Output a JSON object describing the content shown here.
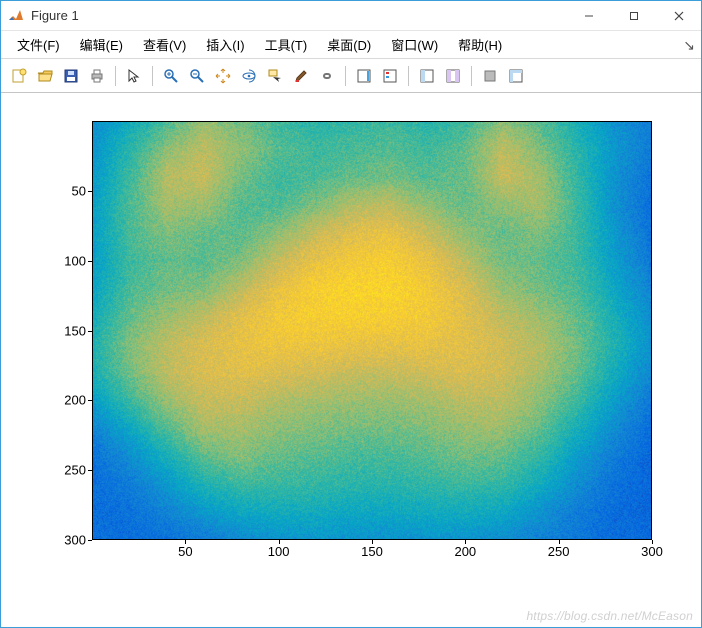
{
  "window": {
    "title": "Figure 1",
    "controls": {
      "minimize": "—",
      "maximize": "☐",
      "close": "✕"
    }
  },
  "menubar": {
    "items": [
      {
        "label": "文件(F)"
      },
      {
        "label": "编辑(E)"
      },
      {
        "label": "查看(V)"
      },
      {
        "label": "插入(I)"
      },
      {
        "label": "工具(T)"
      },
      {
        "label": "桌面(D)"
      },
      {
        "label": "窗口(W)"
      },
      {
        "label": "帮助(H)"
      }
    ],
    "aux_glyph": "↘"
  },
  "toolbar": {
    "items": [
      {
        "name": "new-figure-icon",
        "kind": "icon"
      },
      {
        "name": "open-icon",
        "kind": "icon"
      },
      {
        "name": "save-icon",
        "kind": "icon"
      },
      {
        "name": "print-icon",
        "kind": "icon"
      },
      {
        "name": "sep"
      },
      {
        "name": "pointer-icon",
        "kind": "icon"
      },
      {
        "name": "sep"
      },
      {
        "name": "zoom-in-icon",
        "kind": "icon"
      },
      {
        "name": "zoom-out-icon",
        "kind": "icon"
      },
      {
        "name": "pan-icon",
        "kind": "icon"
      },
      {
        "name": "rotate3d-icon",
        "kind": "icon"
      },
      {
        "name": "data-cursor-icon",
        "kind": "icon"
      },
      {
        "name": "brush-icon",
        "kind": "icon"
      },
      {
        "name": "link-icon",
        "kind": "icon"
      },
      {
        "name": "sep"
      },
      {
        "name": "colorbar-icon",
        "kind": "icon"
      },
      {
        "name": "legend-icon",
        "kind": "icon"
      },
      {
        "name": "sep"
      },
      {
        "name": "layout1-icon",
        "kind": "icon"
      },
      {
        "name": "layout2-icon",
        "kind": "icon"
      },
      {
        "name": "sep"
      },
      {
        "name": "hide-plot-tools-icon",
        "kind": "icon"
      },
      {
        "name": "show-plot-tools-icon",
        "kind": "icon"
      }
    ]
  },
  "axes": {
    "xlim": [
      0,
      300
    ],
    "ylim": [
      0,
      300
    ],
    "y_reversed": true,
    "xticks": [
      50,
      100,
      150,
      200,
      250,
      300
    ],
    "yticks": [
      50,
      100,
      150,
      200,
      250,
      300
    ],
    "tick_fontsize": 13,
    "tick_color": "#000000",
    "border_color": "#000000",
    "background": "#ffffff"
  },
  "heatmap": {
    "type": "heatmap",
    "rows": 300,
    "cols": 300,
    "colormap": "parula",
    "colormap_stops": [
      {
        "t": 0.0,
        "c": "#352a87"
      },
      {
        "t": 0.12,
        "c": "#0363e1"
      },
      {
        "t": 0.25,
        "c": "#1485d4"
      },
      {
        "t": 0.37,
        "c": "#06a7c6"
      },
      {
        "t": 0.5,
        "c": "#38b99e"
      },
      {
        "t": 0.62,
        "c": "#92bf73"
      },
      {
        "t": 0.75,
        "c": "#d9ba56"
      },
      {
        "t": 0.87,
        "c": "#fcce2e"
      },
      {
        "t": 1.0,
        "c": "#f9fb0e"
      }
    ],
    "value_range_est": [
      0,
      1
    ],
    "samples_16x16": [
      [
        0.28,
        0.4,
        0.52,
        0.64,
        0.58,
        0.5,
        0.46,
        0.48,
        0.5,
        0.46,
        0.5,
        0.62,
        0.54,
        0.42,
        0.3,
        0.22
      ],
      [
        0.3,
        0.46,
        0.62,
        0.7,
        0.62,
        0.54,
        0.5,
        0.52,
        0.54,
        0.5,
        0.56,
        0.7,
        0.6,
        0.46,
        0.32,
        0.22
      ],
      [
        0.32,
        0.5,
        0.68,
        0.72,
        0.58,
        0.5,
        0.52,
        0.56,
        0.58,
        0.54,
        0.56,
        0.72,
        0.66,
        0.48,
        0.3,
        0.18
      ],
      [
        0.34,
        0.52,
        0.66,
        0.64,
        0.54,
        0.52,
        0.6,
        0.68,
        0.7,
        0.62,
        0.56,
        0.62,
        0.66,
        0.5,
        0.3,
        0.16
      ],
      [
        0.34,
        0.52,
        0.6,
        0.56,
        0.54,
        0.62,
        0.72,
        0.78,
        0.8,
        0.72,
        0.62,
        0.56,
        0.6,
        0.5,
        0.32,
        0.18
      ],
      [
        0.34,
        0.5,
        0.56,
        0.54,
        0.6,
        0.72,
        0.8,
        0.84,
        0.86,
        0.8,
        0.7,
        0.58,
        0.56,
        0.5,
        0.34,
        0.2
      ],
      [
        0.36,
        0.52,
        0.58,
        0.6,
        0.7,
        0.8,
        0.86,
        0.88,
        0.88,
        0.84,
        0.76,
        0.64,
        0.58,
        0.52,
        0.38,
        0.24
      ],
      [
        0.4,
        0.56,
        0.64,
        0.7,
        0.78,
        0.84,
        0.86,
        0.86,
        0.86,
        0.84,
        0.78,
        0.7,
        0.64,
        0.56,
        0.42,
        0.28
      ],
      [
        0.44,
        0.6,
        0.7,
        0.76,
        0.8,
        0.82,
        0.82,
        0.8,
        0.8,
        0.8,
        0.78,
        0.74,
        0.68,
        0.58,
        0.44,
        0.3
      ],
      [
        0.42,
        0.58,
        0.7,
        0.76,
        0.78,
        0.76,
        0.74,
        0.72,
        0.72,
        0.74,
        0.76,
        0.74,
        0.66,
        0.56,
        0.4,
        0.26
      ],
      [
        0.34,
        0.5,
        0.64,
        0.72,
        0.72,
        0.68,
        0.66,
        0.64,
        0.64,
        0.66,
        0.7,
        0.7,
        0.62,
        0.5,
        0.34,
        0.2
      ],
      [
        0.24,
        0.38,
        0.54,
        0.66,
        0.66,
        0.62,
        0.6,
        0.58,
        0.58,
        0.6,
        0.64,
        0.64,
        0.56,
        0.42,
        0.28,
        0.16
      ],
      [
        0.18,
        0.28,
        0.42,
        0.56,
        0.6,
        0.56,
        0.54,
        0.52,
        0.52,
        0.54,
        0.58,
        0.56,
        0.48,
        0.34,
        0.22,
        0.14
      ],
      [
        0.16,
        0.22,
        0.32,
        0.44,
        0.5,
        0.5,
        0.48,
        0.46,
        0.46,
        0.48,
        0.5,
        0.48,
        0.4,
        0.28,
        0.18,
        0.14
      ],
      [
        0.16,
        0.18,
        0.24,
        0.32,
        0.38,
        0.4,
        0.4,
        0.38,
        0.38,
        0.4,
        0.4,
        0.38,
        0.3,
        0.22,
        0.16,
        0.14
      ],
      [
        0.18,
        0.16,
        0.18,
        0.22,
        0.26,
        0.3,
        0.32,
        0.3,
        0.3,
        0.3,
        0.3,
        0.28,
        0.24,
        0.2,
        0.16,
        0.16
      ]
    ]
  },
  "watermark": "https://blog.csdn.net/McEason"
}
